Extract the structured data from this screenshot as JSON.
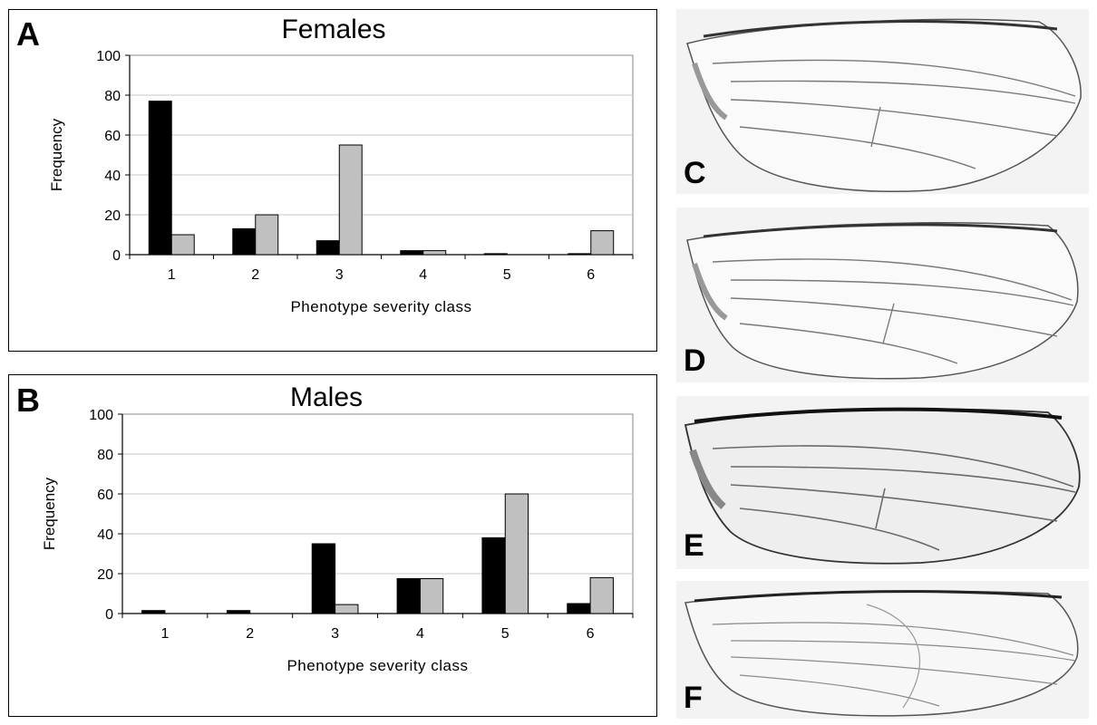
{
  "figure": {
    "panels": {
      "a": {
        "letter": "A"
      },
      "b": {
        "letter": "B"
      },
      "c": {
        "letter": "C"
      },
      "d": {
        "letter": "D"
      },
      "e": {
        "letter": "E"
      },
      "f": {
        "letter": "F"
      }
    }
  },
  "colors": {
    "series1": "#000000",
    "series2": "#c0c0c0",
    "grid": "#c8c8c8",
    "wing_bg": "#f3f3f3",
    "wing_vein": "#7a7a7a"
  },
  "chart_data": [
    {
      "type": "bar",
      "title": "Females",
      "xlabel": "Phenotype severity class",
      "ylabel": "Frequency",
      "categories": [
        "1",
        "2",
        "3",
        "4",
        "5",
        "6"
      ],
      "yticks": [
        "0",
        "20",
        "40",
        "60",
        "80",
        "100"
      ],
      "ylim": [
        0,
        100
      ],
      "grid": true,
      "series": [
        {
          "values": [
            77,
            13,
            7,
            2,
            0.5,
            0.5
          ]
        },
        {
          "values": [
            10,
            20,
            55,
            2,
            0,
            12
          ]
        }
      ]
    },
    {
      "type": "bar",
      "title": "Males",
      "xlabel": "Phenotype severity class",
      "ylabel": "Frequency",
      "categories": [
        "1",
        "2",
        "3",
        "4",
        "5",
        "6"
      ],
      "yticks": [
        "0",
        "20",
        "40",
        "60",
        "80",
        "100"
      ],
      "ylim": [
        0,
        100
      ],
      "grid": true,
      "series": [
        {
          "values": [
            1.5,
            1.5,
            35,
            17.5,
            38,
            5
          ]
        },
        {
          "values": [
            0,
            0,
            4.5,
            17.5,
            60,
            18
          ]
        }
      ]
    }
  ]
}
